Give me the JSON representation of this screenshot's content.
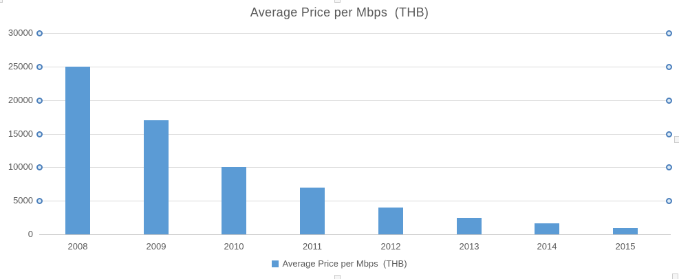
{
  "chart_data": {
    "type": "bar",
    "title": "Average Price per Mbps  (THB)",
    "series_name": "Average Price per Mbps  (THB)",
    "categories": [
      "2008",
      "2009",
      "2010",
      "2011",
      "2012",
      "2013",
      "2014",
      "2015"
    ],
    "values": [
      25000,
      17000,
      10000,
      7000,
      4000,
      2500,
      1600,
      900
    ],
    "xlabel": "",
    "ylabel": "",
    "ylim": [
      0,
      30000
    ],
    "ytick_interval": 5000,
    "yticks": [
      30000,
      25000,
      20000,
      15000,
      10000,
      5000,
      0
    ],
    "grid": true,
    "legend_position": "bottom",
    "gridlines_selected": true,
    "colors": {
      "bar": "#5b9bd5",
      "text": "#595959",
      "gridline": "#d9d9d9",
      "axis_line": "#c6c6c6",
      "handle_ring": "#4a7ebb",
      "handle_fill": "#dcebf7"
    }
  }
}
